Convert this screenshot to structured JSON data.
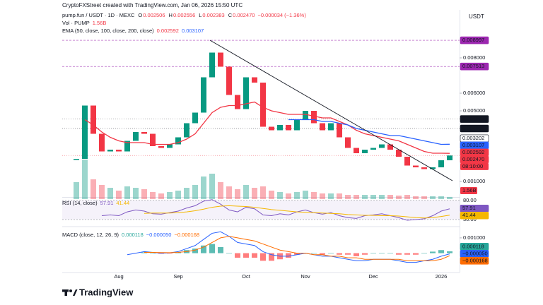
{
  "header": "CryptoFXStreet created with TradingView.com, Jan 06, 2026 15:50 UTC",
  "currency": "USDT",
  "brand": "TradingView",
  "chart_data": [
    {
      "type": "candle",
      "title": "pump.fun / USDT · 1D · MEXC",
      "ohlc": [
        [
          "O",
          "0.002506"
        ],
        [
          "H",
          "0.002556"
        ],
        [
          "L",
          "0.002383"
        ],
        [
          "C",
          "0.002470"
        ]
      ],
      "change": "−0.000034 (−1.36%)",
      "ema_label": "EMA (50, close, 100, close, 200, close)",
      "up_color": "#089981",
      "down_color": "#f23645",
      "categories": [
        null,
        null,
        null,
        null,
        null,
        "Aug",
        null,
        null,
        null,
        null,
        null,
        null,
        "Sep",
        null,
        null,
        null,
        null,
        null,
        null,
        null,
        "Oct",
        null,
        null,
        null,
        null,
        null,
        null,
        "Nov",
        null,
        null,
        null,
        null,
        null,
        null,
        null,
        "Dec",
        null,
        null,
        null,
        null,
        null,
        null,
        null,
        "2026",
        null
      ],
      "values": [
        0.00228,
        0.0053,
        0.0037,
        0.0027,
        0.0028,
        0.0027,
        0.0033,
        0.0038,
        0.0037,
        0.003,
        0.0029,
        0.0031,
        0.0035,
        0.0043,
        0.0049,
        0.0069,
        0.0083,
        0.0075,
        0.0059,
        0.0051,
        0.0069,
        0.0066,
        0.0041,
        0.0039,
        0.0042,
        0.0039,
        0.0045,
        0.005,
        0.0043,
        0.0039,
        0.0043,
        0.0035,
        0.0029,
        0.0026,
        0.0028,
        0.0029,
        0.0031,
        0.0028,
        0.0024,
        0.0019,
        0.0018,
        0.0017,
        0.0018,
        0.0022,
        0.00247
      ],
      "series": [
        {
          "color": "#f23645",
          "values": [
            null,
            0.0045,
            0.0042,
            0.0038,
            0.0035,
            0.0033,
            0.0032,
            0.0032,
            0.0032,
            0.0031,
            0.0031,
            0.0031,
            0.0032,
            0.0034,
            0.0037,
            0.0043,
            0.0049,
            0.0052,
            0.0053,
            0.0053,
            0.0054,
            0.0055,
            0.0052,
            0.005,
            0.0049,
            0.0048,
            0.0048,
            0.0048,
            0.0047,
            0.0046,
            0.0046,
            0.0044,
            0.0042,
            0.0039,
            0.0037,
            0.0036,
            0.0035,
            0.0034,
            0.0033,
            0.0031,
            0.0029,
            0.0027,
            0.0026,
            0.0026,
            0.002592
          ]
        },
        {
          "color": "#2962ff",
          "values": [
            null,
            null,
            null,
            null,
            null,
            null,
            null,
            null,
            null,
            null,
            null,
            null,
            null,
            null,
            null,
            null,
            null,
            null,
            null,
            null,
            null,
            null,
            null,
            null,
            null,
            0.0045,
            0.0045,
            0.0045,
            0.0045,
            0.0044,
            0.0044,
            0.0043,
            0.0042,
            0.004,
            0.0039,
            0.0038,
            0.0037,
            0.0036,
            0.0036,
            0.0035,
            0.0034,
            0.0033,
            0.0032,
            0.0031,
            0.003107
          ]
        }
      ],
      "volume": {
        "label": "Vol · PUMP",
        "ylim": [
          0,
          30
        ],
        "values": [
          12,
          28,
          14,
          10,
          8,
          6,
          9,
          8,
          7,
          5,
          4,
          5,
          6,
          8,
          10,
          16,
          18,
          12,
          9,
          7,
          10,
          8,
          9,
          6,
          5,
          4,
          5,
          6,
          5,
          4,
          4,
          4,
          3,
          3,
          3,
          3,
          3,
          3,
          2.5,
          3,
          2,
          2,
          2,
          2,
          1.56
        ],
        "last": {
          "value": 1.56,
          "label": "1.56B"
        }
      },
      "ylim": [
        0,
        0.01048
      ],
      "yticks": [
        {
          "value": 0.001,
          "label": "0.001000"
        },
        {
          "value": 0.005,
          "label": "0.005000"
        },
        {
          "value": 0.006,
          "label": "0.006000"
        },
        {
          "value": 0.008,
          "label": "0.008000"
        }
      ],
      "levels": [
        {
          "value": 0.008997,
          "color": "#9c27b0",
          "line": "dashed"
        },
        {
          "value": 0.007513,
          "color": "#9c27b0",
          "line": "dashed"
        },
        {
          "value": 0.004537,
          "color": "#131722",
          "line": "dotted"
        },
        {
          "value": 0.004,
          "label": "0.004000",
          "color": "#131722",
          "line": "dotted"
        },
        {
          "value": 0.003202,
          "color": "#ffffff",
          "text_color": "#131722",
          "line": "dotted"
        },
        {
          "value": 0.003107,
          "color": "#2962ff"
        },
        {
          "value": 0.002592,
          "color": "#f23645"
        },
        {
          "value": 0.00247,
          "label": "0.002470",
          "color": "#f23645",
          "line": "dotted",
          "countdown": "08:10:00"
        }
      ]
    },
    {
      "type": "line",
      "title": "RSI (14, close)",
      "series": [
        {
          "color": "#7e57c2",
          "values": [
            null,
            null,
            null,
            40,
            42,
            40,
            50,
            55,
            52,
            45,
            44,
            48,
            52,
            60,
            66,
            78,
            82,
            70,
            55,
            50,
            62,
            58,
            42,
            40,
            45,
            42,
            50,
            55,
            48,
            44,
            48,
            40,
            35,
            33,
            40,
            42,
            45,
            40,
            35,
            28,
            30,
            32,
            40,
            52,
            57.91
          ]
        },
        {
          "color": "#f5b700",
          "values": [
            null,
            null,
            null,
            null,
            null,
            null,
            null,
            null,
            46,
            47,
            47,
            47,
            48,
            50,
            53,
            57,
            62,
            65,
            66,
            65,
            64,
            62,
            59,
            56,
            54,
            52,
            50,
            49,
            48,
            47,
            46,
            45,
            43,
            42,
            41,
            41,
            40,
            40,
            39,
            37,
            35,
            34,
            35,
            38,
            41.44
          ]
        }
      ],
      "ylim": [
        17,
        87
      ],
      "yticks": [
        {
          "value": 30,
          "label": "30.00"
        },
        {
          "value": 80,
          "label": "80.00"
        }
      ],
      "band_color": "#7e57c2",
      "value_boxes": [
        {
          "value": 57.91,
          "color": "#7e57c2"
        },
        {
          "value": 41.44,
          "color": "#f5b700"
        }
      ]
    },
    {
      "type": "macd",
      "title": "MACD (close, 12, 26, 9)",
      "series": [
        {
          "color": "#2962ff",
          "values": [
            null,
            null,
            null,
            null,
            null,
            null,
            -0.0001,
            0,
            0.0001,
            5e-05,
            0,
            2e-05,
            0.0001,
            0.0003,
            0.0005,
            0.0009,
            0.0013,
            0.0014,
            0.0011,
            0.0007,
            0.0006,
            0.0005,
            0.0001,
            -0.0001,
            -0.0002,
            -0.0002,
            -0.0001,
            0,
            -0.0001,
            -0.0002,
            -0.0002,
            -0.0003,
            -0.0004,
            -0.0005,
            -0.0005,
            -0.0004,
            -0.0004,
            -0.0004,
            -0.0005,
            -0.0006,
            -0.0006,
            -0.0005,
            -0.0004,
            -0.0002,
            -5e-05
          ]
        },
        {
          "color": "#ff6d00",
          "values": [
            null,
            null,
            null,
            null,
            null,
            null,
            null,
            null,
            5e-05,
            5e-05,
            4e-05,
            3e-05,
            5e-05,
            0.0001,
            0.0002,
            0.0004,
            0.0007,
            0.001,
            0.0011,
            0.001,
            0.0009,
            0.0008,
            0.0006,
            0.0004,
            0.0002,
            0.0001,
            0,
            0,
            -0.0001,
            -0.0001,
            -0.0002,
            -0.0002,
            -0.0003,
            -0.0003,
            -0.0004,
            -0.0004,
            -0.0004,
            -0.0004,
            -0.0004,
            -0.0005,
            -0.0005,
            -0.0005,
            -0.0005,
            -0.0004,
            -0.000168
          ]
        }
      ],
      "histogram": {
        "pos_color": "#26a69a",
        "neg_color": "#ff5252",
        "values": [
          null,
          null,
          null,
          null,
          null,
          null,
          null,
          null,
          5e-05,
          0,
          -4e-05,
          -1e-05,
          5e-05,
          0.0002,
          0.0003,
          0.0005,
          0.0006,
          0.0004,
          0,
          -0.0003,
          -0.0003,
          -0.0003,
          -0.0005,
          -0.0005,
          -0.0004,
          -0.0003,
          -0.0001,
          0,
          0,
          -0.0001,
          0,
          -0.0001,
          -0.0001,
          -0.0002,
          -0.0001,
          0,
          0,
          0,
          -0.0001,
          -0.0001,
          -0.0001,
          0,
          0.0001,
          0.0002,
          0.000118
        ]
      },
      "ylim": [
        -0.00122,
        0.00155
      ],
      "yticks": [
        {
          "value": 0.001,
          "label": "0.001000"
        }
      ],
      "value_boxes": [
        {
          "value": 0.000118,
          "color": "#26a69a"
        },
        {
          "value": -5e-05,
          "label": "−0.000050",
          "color": "#2962ff"
        },
        {
          "value": -0.000168,
          "label": "−0.000168",
          "color": "#ff6d00"
        }
      ]
    }
  ]
}
